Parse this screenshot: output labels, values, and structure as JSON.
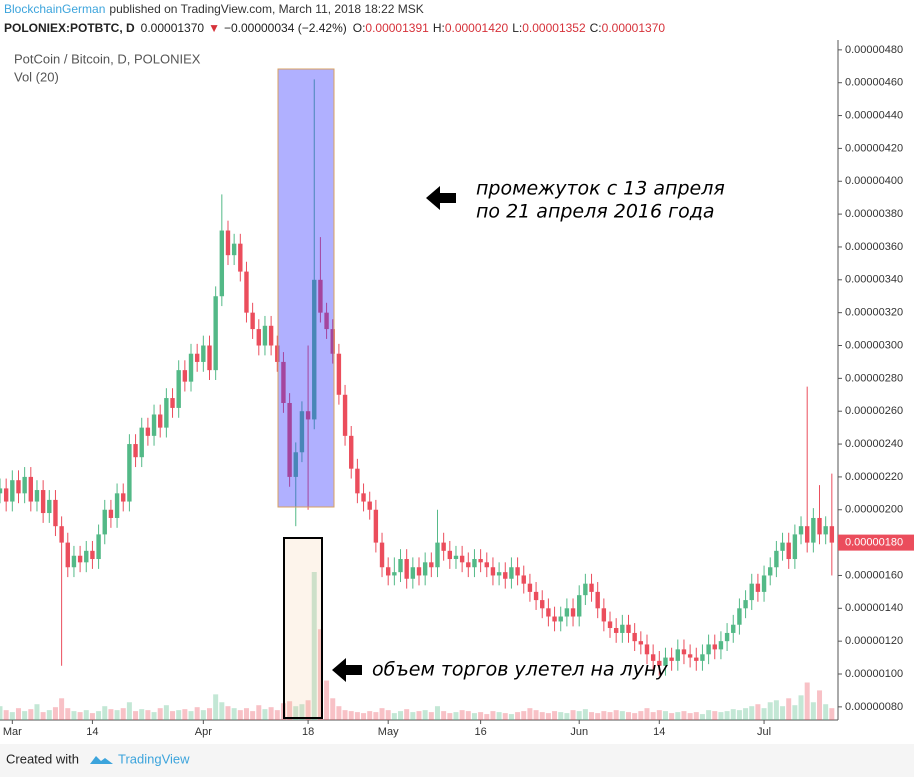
{
  "header": {
    "author": "BlockchainGerman",
    "published": "published on TradingView.com, March 11, 2018 18:22 MSK",
    "symbol": "POLONIEX:POTBTC, D",
    "last": "0.00001370",
    "arrow": "▼",
    "change": "−0.00000034 (−2.42%)",
    "ohlc": [
      {
        "key": "O:",
        "value": "0.00001391"
      },
      {
        "key": "H:",
        "value": "0.00001420"
      },
      {
        "key": "L:",
        "value": "0.00001352"
      },
      {
        "key": "C:",
        "value": "0.00001370"
      }
    ]
  },
  "footer": {
    "created": "Created with",
    "brand": "TradingView"
  },
  "chart_data": {
    "type": "candlestick",
    "title": "PotCoin / Bitcoin, D, POLONIEX",
    "subtitle": "Vol (20)",
    "annotations": [
      "промежуток с 13 апреля",
      "по 21 апреля 2016 года",
      "объем торгов улетел на луну"
    ],
    "up_color": "#53b987",
    "down_color": "#eb4d5c",
    "last_price": {
      "value": 1.8e-06,
      "label": "0.00000180"
    },
    "xlim": [
      0,
      136
    ],
    "xticks": [
      {
        "value": 2,
        "label": "Mar"
      },
      {
        "value": 15,
        "label": "14"
      },
      {
        "value": 33,
        "label": "Apr"
      },
      {
        "value": 50,
        "label": "18"
      },
      {
        "value": 63,
        "label": "May"
      },
      {
        "value": 78,
        "label": "16"
      },
      {
        "value": 94,
        "label": "Jun"
      },
      {
        "value": 107,
        "label": "14"
      },
      {
        "value": 124,
        "label": "Jul"
      }
    ],
    "ylim": [
      7.2e-07,
      4.86e-06
    ],
    "yticks": [
      {
        "value": 8e-07,
        "label": "0.00000080"
      },
      {
        "value": 1e-06,
        "label": "0.00000100"
      },
      {
        "value": 1.2e-06,
        "label": "0.00000120"
      },
      {
        "value": 1.4e-06,
        "label": "0.00000140"
      },
      {
        "value": 1.6e-06,
        "label": "0.00000160"
      },
      {
        "value": 1.8e-06,
        "label": "0.00000180"
      },
      {
        "value": 2e-06,
        "label": "0.00000200"
      },
      {
        "value": 2.2e-06,
        "label": "0.00000220"
      },
      {
        "value": 2.4e-06,
        "label": "0.00000240"
      },
      {
        "value": 2.6e-06,
        "label": "0.00000260"
      },
      {
        "value": 2.8e-06,
        "label": "0.00000280"
      },
      {
        "value": 3e-06,
        "label": "0.00000300"
      },
      {
        "value": 3.2e-06,
        "label": "0.00000320"
      },
      {
        "value": 3.4e-06,
        "label": "0.00000340"
      },
      {
        "value": 3.6e-06,
        "label": "0.00000360"
      },
      {
        "value": 3.8e-06,
        "label": "0.00000380"
      },
      {
        "value": 4e-06,
        "label": "0.00000400"
      },
      {
        "value": 4.2e-06,
        "label": "0.00000420"
      },
      {
        "value": 4.4e-06,
        "label": "0.00000440"
      },
      {
        "value": 4.6e-06,
        "label": "0.00000460"
      },
      {
        "value": 4.8e-06,
        "label": "0.00000480"
      }
    ],
    "open": [
      2.1e-06,
      2.13e-06,
      2.05e-06,
      2.18e-06,
      2.1e-06,
      2.2e-06,
      2.05e-06,
      2.12e-06,
      1.98e-06,
      2.06e-06,
      1.9e-06,
      1.8e-06,
      1.65e-06,
      1.72e-06,
      1.68e-06,
      1.75e-06,
      1.7e-06,
      1.85e-06,
      2e-06,
      1.95e-06,
      2.1e-06,
      2.05e-06,
      2.4e-06,
      2.32e-06,
      2.5e-06,
      2.45e-06,
      2.58e-06,
      2.5e-06,
      2.68e-06,
      2.62e-06,
      2.85e-06,
      2.78e-06,
      2.95e-06,
      2.9e-06,
      3e-06,
      2.85e-06,
      3.3e-06,
      3.7e-06,
      3.55e-06,
      3.62e-06,
      3.45e-06,
      3.2e-06,
      3.1e-06,
      3e-06,
      3.12e-06,
      3e-06,
      2.9e-06,
      2.65e-06,
      2.2e-06,
      2.35e-06,
      2.6e-06,
      2.55e-06,
      3.4e-06,
      3.2e-06,
      3.1e-06,
      2.95e-06,
      2.7e-06,
      2.45e-06,
      2.25e-06,
      2.1e-06,
      2.05e-06,
      2e-06,
      1.8e-06,
      1.65e-06,
      1.6e-06,
      1.62e-06,
      1.7e-06,
      1.58e-06,
      1.65e-06,
      1.6e-06,
      1.68e-06,
      1.65e-06,
      1.8e-06,
      1.75e-06,
      1.7e-06,
      1.72e-06,
      1.68e-06,
      1.65e-06,
      1.7e-06,
      1.68e-06,
      1.65e-06,
      1.6e-06,
      1.62e-06,
      1.58e-06,
      1.65e-06,
      1.6e-06,
      1.55e-06,
      1.5e-06,
      1.45e-06,
      1.4e-06,
      1.35e-06,
      1.32e-06,
      1.35e-06,
      1.4e-06,
      1.35e-06,
      1.48e-06,
      1.55e-06,
      1.5e-06,
      1.4e-06,
      1.32e-06,
      1.28e-06,
      1.25e-06,
      1.3e-06,
      1.25e-06,
      1.2e-06,
      1.18e-06,
      1.12e-06,
      1.08e-06,
      1.05e-06,
      1.1e-06,
      1.08e-06,
      1.15e-06,
      1.12e-06,
      1.1e-06,
      1.08e-06,
      1.12e-06,
      1.18e-06,
      1.15e-06,
      1.2e-06,
      1.25e-06,
      1.3e-06,
      1.4e-06,
      1.45e-06,
      1.55e-06,
      1.5e-06,
      1.6e-06,
      1.65e-06,
      1.75e-06,
      1.8e-06,
      1.7e-06,
      1.85e-06,
      1.9e-06,
      1.8e-06,
      1.95e-06,
      1.85e-06,
      1.9e-06
    ],
    "high": [
      2.19e-06,
      2.19e-06,
      2.24e-06,
      2.24e-06,
      2.26e-06,
      2.26e-06,
      2.18e-06,
      2.18e-06,
      2.12e-06,
      2.12e-06,
      1.96e-06,
      1.86e-06,
      1.78e-06,
      1.78e-06,
      1.81e-06,
      1.81e-06,
      1.91e-06,
      2.06e-06,
      2.06e-06,
      2.16e-06,
      2.16e-06,
      2.46e-06,
      2.46e-06,
      2.56e-06,
      2.56e-06,
      2.64e-06,
      2.64e-06,
      2.74e-06,
      2.74e-06,
      2.91e-06,
      2.91e-06,
      3.01e-06,
      3.01e-06,
      3.06e-06,
      3.06e-06,
      3.36e-06,
      3.92e-06,
      3.76e-06,
      3.68e-06,
      3.68e-06,
      3.51e-06,
      3.26e-06,
      3.16e-06,
      3.18e-06,
      3.18e-06,
      3.06e-06,
      2.96e-06,
      2.71e-06,
      2.41e-06,
      2.66e-06,
      3e-06,
      4.62e-06,
      3.66e-06,
      3.26e-06,
      3.16e-06,
      3.01e-06,
      2.76e-06,
      2.51e-06,
      2.31e-06,
      2.16e-06,
      2.11e-06,
      2.06e-06,
      1.86e-06,
      1.71e-06,
      1.71e-06,
      1.76e-06,
      1.76e-06,
      1.71e-06,
      1.71e-06,
      1.74e-06,
      1.74e-06,
      2e-06,
      1.86e-06,
      1.81e-06,
      1.78e-06,
      1.78e-06,
      1.74e-06,
      1.76e-06,
      1.76e-06,
      1.74e-06,
      1.71e-06,
      1.68e-06,
      1.68e-06,
      1.71e-06,
      1.71e-06,
      1.66e-06,
      1.61e-06,
      1.56e-06,
      1.51e-06,
      1.46e-06,
      1.41e-06,
      1.41e-06,
      1.46e-06,
      1.46e-06,
      1.54e-06,
      1.61e-06,
      1.61e-06,
      1.56e-06,
      1.46e-06,
      1.38e-06,
      1.34e-06,
      1.36e-06,
      1.36e-06,
      1.31e-06,
      1.26e-06,
      1.24e-06,
      1.18e-06,
      1.14e-06,
      1.16e-06,
      1.16e-06,
      1.21e-06,
      1.21e-06,
      1.18e-06,
      1.16e-06,
      1.18e-06,
      1.24e-06,
      1.24e-06,
      1.26e-06,
      1.31e-06,
      1.36e-06,
      1.46e-06,
      1.51e-06,
      1.61e-06,
      1.61e-06,
      1.66e-06,
      1.71e-06,
      1.81e-06,
      1.86e-06,
      1.86e-06,
      1.91e-06,
      1.96e-06,
      2.75e-06,
      2.01e-06,
      2.15e-06,
      1.96e-06,
      2.22e-06
    ],
    "low": [
      2.04e-06,
      1.99e-06,
      1.99e-06,
      2.04e-06,
      2.04e-06,
      1.99e-06,
      1.99e-06,
      1.92e-06,
      1.92e-06,
      1.84e-06,
      1.05e-06,
      1.59e-06,
      1.59e-06,
      1.62e-06,
      1.62e-06,
      1.64e-06,
      1.64e-06,
      1.79e-06,
      1.89e-06,
      1.89e-06,
      1.99e-06,
      1.99e-06,
      2.26e-06,
      2.26e-06,
      2.39e-06,
      2.39e-06,
      2.44e-06,
      2.44e-06,
      2.56e-06,
      2.56e-06,
      2.72e-06,
      2.72e-06,
      2.84e-06,
      2.84e-06,
      2.79e-06,
      2.79e-06,
      3.24e-06,
      3.49e-06,
      3.49e-06,
      3.39e-06,
      3.14e-06,
      3.04e-06,
      2.94e-06,
      2.94e-06,
      2.94e-06,
      2.84e-06,
      2.59e-06,
      2.14e-06,
      1.9e-06,
      2.29e-06,
      2e-06,
      2.49e-06,
      3.14e-06,
      3.04e-06,
      2.89e-06,
      2.64e-06,
      2.39e-06,
      2.19e-06,
      2.04e-06,
      1.99e-06,
      1.94e-06,
      1.74e-06,
      1.59e-06,
      1.54e-06,
      1.54e-06,
      1.56e-06,
      1.52e-06,
      1.52e-06,
      1.54e-06,
      1.54e-06,
      1.59e-06,
      1.59e-06,
      1.69e-06,
      1.64e-06,
      1.64e-06,
      1.62e-06,
      1.59e-06,
      1.59e-06,
      1.62e-06,
      1.59e-06,
      1.54e-06,
      1.54e-06,
      1.52e-06,
      1.52e-06,
      1.54e-06,
      1.49e-06,
      1.44e-06,
      1.39e-06,
      1.34e-06,
      1.29e-06,
      1.26e-06,
      1.26e-06,
      1.29e-06,
      1.29e-06,
      1.29e-06,
      1.42e-06,
      1.44e-06,
      1.34e-06,
      1.26e-06,
      1.22e-06,
      1.19e-06,
      1.19e-06,
      1.19e-06,
      1.14e-06,
      1.12e-06,
      1.06e-06,
      1.02e-06,
      9.9e-07,
      9.9e-07,
      1.02e-06,
      1.02e-06,
      1.06e-06,
      1.04e-06,
      1.02e-06,
      1.02e-06,
      1.06e-06,
      1.09e-06,
      1.09e-06,
      1.14e-06,
      1.19e-06,
      1.24e-06,
      1.34e-06,
      1.39e-06,
      1.44e-06,
      1.44e-06,
      1.54e-06,
      1.59e-06,
      1.69e-06,
      1.64e-06,
      1.64e-06,
      1.79e-06,
      1.74e-06,
      1.74e-06,
      1.79e-06,
      1.79e-06,
      1.6e-06
    ],
    "close": [
      2.13e-06,
      2.05e-06,
      2.18e-06,
      2.1e-06,
      2.2e-06,
      2.05e-06,
      2.12e-06,
      1.98e-06,
      2.06e-06,
      1.9e-06,
      1.8e-06,
      1.65e-06,
      1.72e-06,
      1.68e-06,
      1.75e-06,
      1.7e-06,
      1.85e-06,
      2e-06,
      1.95e-06,
      2.1e-06,
      2.05e-06,
      2.4e-06,
      2.32e-06,
      2.5e-06,
      2.45e-06,
      2.58e-06,
      2.5e-06,
      2.68e-06,
      2.62e-06,
      2.85e-06,
      2.78e-06,
      2.95e-06,
      2.9e-06,
      3e-06,
      2.85e-06,
      3.3e-06,
      3.7e-06,
      3.55e-06,
      3.62e-06,
      3.45e-06,
      3.2e-06,
      3.1e-06,
      3e-06,
      3.12e-06,
      3e-06,
      2.9e-06,
      2.65e-06,
      2.2e-06,
      2.35e-06,
      2.6e-06,
      2.55e-06,
      3.4e-06,
      3.2e-06,
      3.1e-06,
      2.95e-06,
      2.7e-06,
      2.45e-06,
      2.25e-06,
      2.1e-06,
      2.05e-06,
      2e-06,
      1.8e-06,
      1.65e-06,
      1.6e-06,
      1.62e-06,
      1.7e-06,
      1.58e-06,
      1.65e-06,
      1.6e-06,
      1.68e-06,
      1.65e-06,
      1.8e-06,
      1.75e-06,
      1.7e-06,
      1.72e-06,
      1.68e-06,
      1.65e-06,
      1.7e-06,
      1.68e-06,
      1.65e-06,
      1.6e-06,
      1.62e-06,
      1.58e-06,
      1.65e-06,
      1.6e-06,
      1.55e-06,
      1.5e-06,
      1.45e-06,
      1.4e-06,
      1.35e-06,
      1.32e-06,
      1.35e-06,
      1.4e-06,
      1.35e-06,
      1.48e-06,
      1.55e-06,
      1.5e-06,
      1.4e-06,
      1.32e-06,
      1.28e-06,
      1.25e-06,
      1.3e-06,
      1.25e-06,
      1.2e-06,
      1.18e-06,
      1.12e-06,
      1.08e-06,
      1.05e-06,
      1.1e-06,
      1.08e-06,
      1.15e-06,
      1.12e-06,
      1.1e-06,
      1.08e-06,
      1.12e-06,
      1.18e-06,
      1.15e-06,
      1.2e-06,
      1.25e-06,
      1.3e-06,
      1.4e-06,
      1.45e-06,
      1.55e-06,
      1.5e-06,
      1.6e-06,
      1.65e-06,
      1.75e-06,
      1.8e-06,
      1.7e-06,
      1.85e-06,
      1.9e-06,
      1.8e-06,
      1.95e-06,
      1.85e-06,
      1.9e-06,
      1.8e-06
    ],
    "volume": [
      14,
      10,
      8,
      12,
      9,
      11,
      16,
      8,
      10,
      13,
      22,
      12,
      9,
      8,
      10,
      7,
      9,
      14,
      11,
      10,
      12,
      18,
      9,
      11,
      10,
      8,
      12,
      15,
      9,
      10,
      11,
      9,
      13,
      10,
      12,
      26,
      18,
      14,
      12,
      10,
      12,
      9,
      15,
      11,
      13,
      10,
      17,
      19,
      14,
      16,
      20,
      150,
      92,
      40,
      22,
      14,
      10,
      9,
      8,
      7,
      9,
      8,
      12,
      10,
      7,
      9,
      11,
      8,
      9,
      10,
      8,
      14,
      9,
      7,
      8,
      10,
      9,
      7,
      8,
      6,
      9,
      8,
      7,
      6,
      8,
      9,
      12,
      10,
      8,
      7,
      9,
      8,
      7,
      10,
      9,
      11,
      8,
      7,
      9,
      8,
      10,
      9,
      8,
      7,
      9,
      12,
      8,
      10,
      9,
      7,
      8,
      9,
      7,
      8,
      6,
      10,
      9,
      8,
      9,
      11,
      10,
      12,
      14,
      16,
      12,
      18,
      20,
      14,
      22,
      15,
      25,
      38,
      18,
      30,
      16,
      12
    ]
  }
}
